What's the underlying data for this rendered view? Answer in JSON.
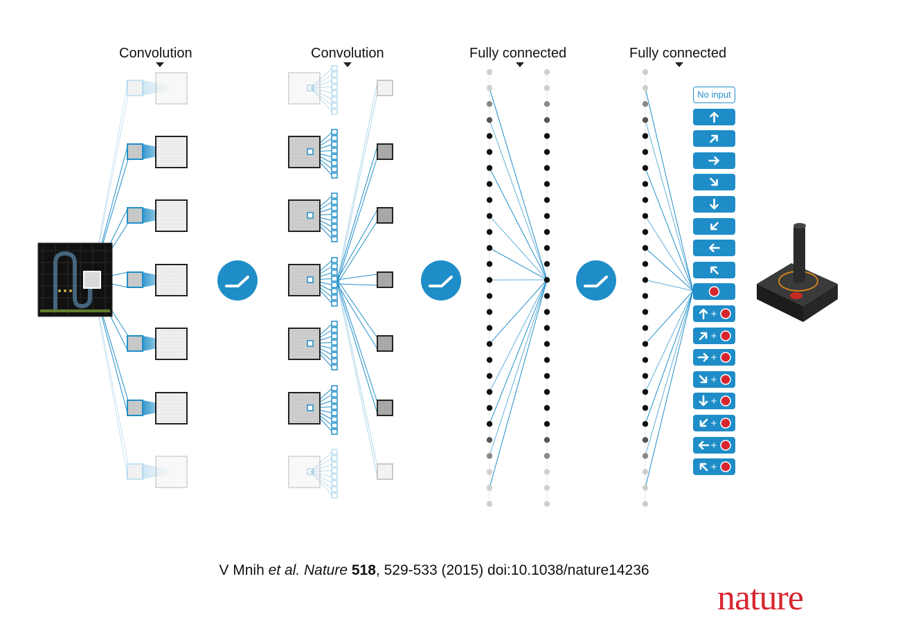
{
  "labels": {
    "conv1": "Convolution",
    "conv2": "Convolution",
    "fc1": "Fully connected",
    "fc2": "Fully connected"
  },
  "actions": [
    {
      "name": "No input",
      "arrow": "",
      "fire": false
    },
    {
      "name": "up",
      "arrow": "n",
      "fire": false
    },
    {
      "name": "up-right",
      "arrow": "ne",
      "fire": false
    },
    {
      "name": "right",
      "arrow": "e",
      "fire": false
    },
    {
      "name": "down-right",
      "arrow": "se",
      "fire": false
    },
    {
      "name": "down",
      "arrow": "s",
      "fire": false
    },
    {
      "name": "down-left",
      "arrow": "sw",
      "fire": false
    },
    {
      "name": "left",
      "arrow": "w",
      "fire": false
    },
    {
      "name": "up-left",
      "arrow": "nw",
      "fire": false
    },
    {
      "name": "fire",
      "arrow": "",
      "fire": true
    },
    {
      "name": "up-fire",
      "arrow": "n",
      "fire": true
    },
    {
      "name": "up-right-fire",
      "arrow": "ne",
      "fire": true
    },
    {
      "name": "right-fire",
      "arrow": "e",
      "fire": true
    },
    {
      "name": "down-right-fire",
      "arrow": "se",
      "fire": true
    },
    {
      "name": "down-fire",
      "arrow": "s",
      "fire": true
    },
    {
      "name": "down-left-fire",
      "arrow": "sw",
      "fire": true
    },
    {
      "name": "left-fire",
      "arrow": "w",
      "fire": true
    },
    {
      "name": "up-left-fire",
      "arrow": "nw",
      "fire": true
    }
  ],
  "citation": {
    "authors": "V Mnih ",
    "etal": "et al.",
    "journal": "Nature",
    "volume": "518",
    "rest": ", 529-533 (2015) doi:10.1038/nature14236"
  },
  "logo": "nature",
  "colors": {
    "accent": "#1f8dc8",
    "fire": "#d7262f",
    "node": "#111111",
    "node_faint": "#cccccc"
  },
  "icons": [
    "relu-icon",
    "joystick-icon",
    "arrow-icon",
    "fire-button-icon"
  ]
}
